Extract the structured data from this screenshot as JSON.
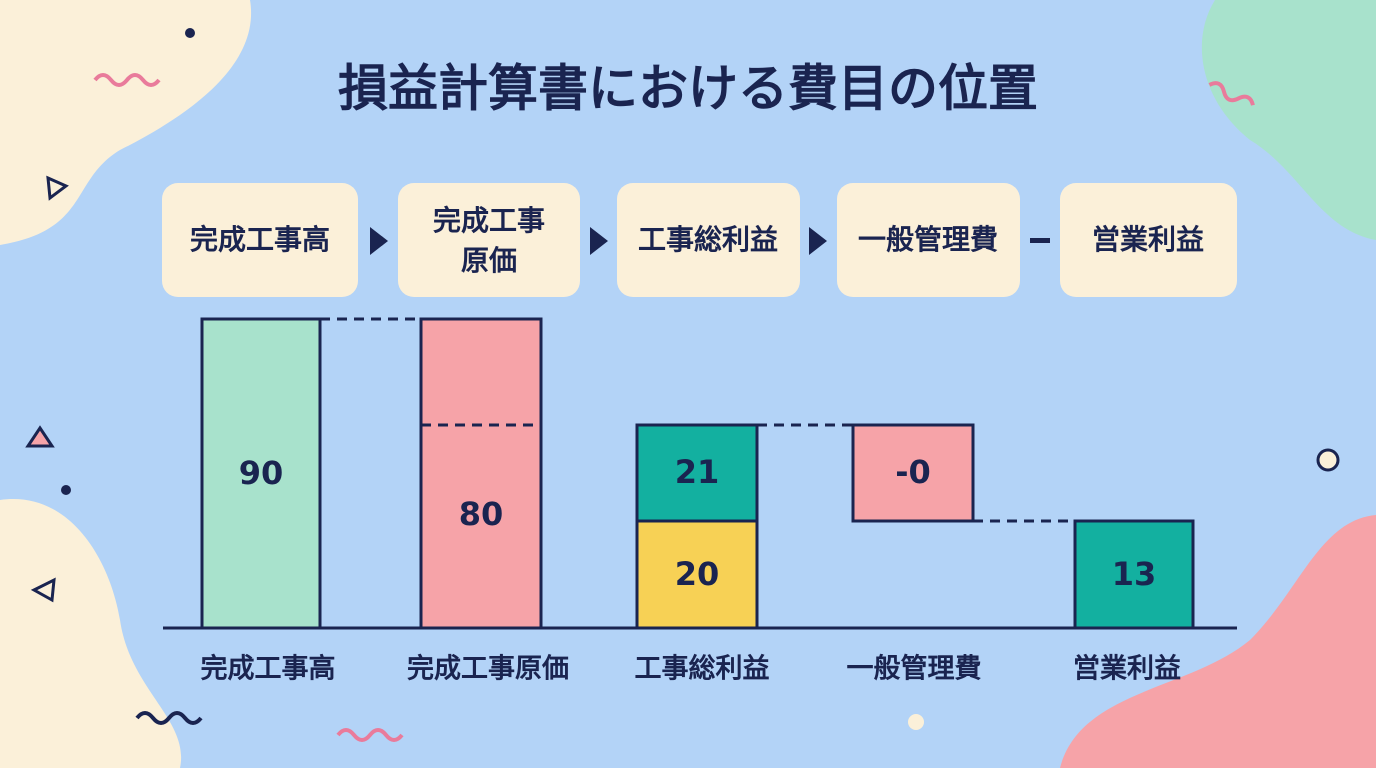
{
  "title": "損益計算書における費目の位置",
  "steps": [
    {
      "lines": [
        "完成工事高"
      ]
    },
    {
      "lines": [
        "完成工事",
        "原価"
      ]
    },
    {
      "lines": [
        "工事総利益"
      ]
    },
    {
      "lines": [
        "一般管理費"
      ]
    },
    {
      "lines": [
        "営業利益"
      ]
    }
  ],
  "bars": [
    {
      "label": "完成工事高",
      "segments": [
        "90"
      ]
    },
    {
      "label": "完成工事原価",
      "segments": [
        "80"
      ]
    },
    {
      "label": "工事総利益",
      "segments": [
        "21",
        "20"
      ]
    },
    {
      "label": "一般管理費",
      "segments": [
        "-0"
      ]
    },
    {
      "label": "営業利益",
      "segments": [
        "13"
      ]
    }
  ]
}
